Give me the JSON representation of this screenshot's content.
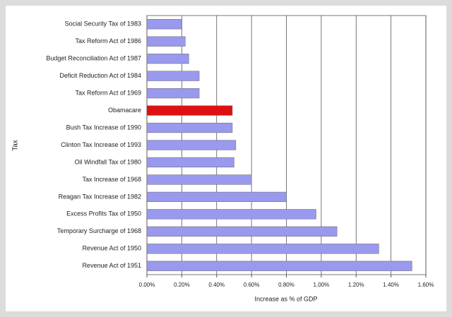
{
  "chart_data": {
    "type": "hbar",
    "ylabel": "Tax",
    "xlabel": "Increase as % of GDP",
    "categories": [
      "Social Security Tax of 1983",
      "Tax Reform Act of 1986",
      "Budget Reconciliation Act of 1987",
      "Deficit Reduction Act of 1984",
      "Tax Reform Act of 1969",
      "Obamacare",
      "Bush Tax Increase of 1990",
      "Clinton Tax Increase of 1993",
      "Oil Windfall Tax of 1980",
      "Tax Increase of 1968",
      "Reagan Tax Increase of 1982",
      "Excess Profits Tax of 1950",
      "Temporary Surcharge of 1968",
      "Revenue Act of 1950",
      "Revenue Act of 1951"
    ],
    "values": [
      0.2,
      0.22,
      0.24,
      0.3,
      0.3,
      0.49,
      0.49,
      0.51,
      0.5,
      0.6,
      0.8,
      0.97,
      1.09,
      1.33,
      1.52
    ],
    "colors": [
      "#9999ee",
      "#9999ee",
      "#9999ee",
      "#9999ee",
      "#9999ee",
      "#dd1111",
      "#9999ee",
      "#9999ee",
      "#9999ee",
      "#9999ee",
      "#9999ee",
      "#9999ee",
      "#9999ee",
      "#9999ee",
      "#9999ee"
    ],
    "xlim": [
      0,
      1.6
    ],
    "xticks": [
      {
        "value": 0,
        "label": "0.00%"
      },
      {
        "value": 0.2,
        "label": "0.20%"
      },
      {
        "value": 0.4,
        "label": "0.40%"
      },
      {
        "value": 0.6,
        "label": "0.60%"
      },
      {
        "value": 0.8,
        "label": "0.80%"
      },
      {
        "value": 1.0,
        "label": "1.00%"
      },
      {
        "value": 1.2,
        "label": "1.20%"
      },
      {
        "value": 1.4,
        "label": "1.40%"
      },
      {
        "value": 1.6,
        "label": "1.60%"
      }
    ],
    "grid": true
  }
}
